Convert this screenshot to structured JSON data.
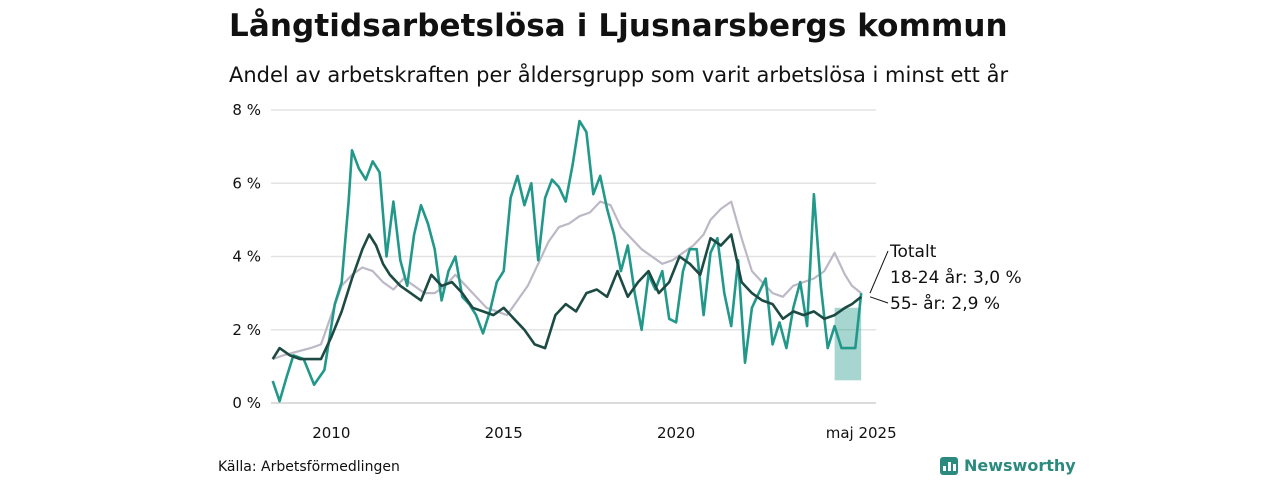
{
  "header": {
    "title": "Långtidsarbetslösa i Ljusnarsbergs kommun",
    "subtitle": "Andel av arbetskraften per åldersgrupp som varit arbetslösa i minst ett år"
  },
  "footer": {
    "source": "Källa: Arbetsförmedlingen",
    "brand": "Newsworthy"
  },
  "chart_data": {
    "type": "line",
    "ylim": [
      0,
      8
    ],
    "yticks": [
      0,
      2,
      4,
      6,
      8
    ],
    "ytick_labels": [
      "0 %",
      "2 %",
      "4 %",
      "6 %",
      "8 %"
    ],
    "xlim": [
      2008.25,
      2025.8
    ],
    "xticks": [
      2010,
      2015,
      2020,
      2025.37
    ],
    "xtick_labels": [
      "2010",
      "2015",
      "2020",
      "maj 2025"
    ],
    "grid": true,
    "series": [
      {
        "name": "Totalt",
        "color": "#bdb8c6",
        "x": [
          2008.3,
          2008.6,
          2009.0,
          2009.4,
          2009.7,
          2010.0,
          2010.3,
          2010.6,
          2010.9,
          2011.2,
          2011.5,
          2011.8,
          2012.1,
          2012.4,
          2012.7,
          2013.0,
          2013.3,
          2013.6,
          2013.9,
          2014.2,
          2014.5,
          2014.8,
          2015.1,
          2015.4,
          2015.7,
          2016.0,
          2016.3,
          2016.6,
          2016.9,
          2017.2,
          2017.5,
          2017.8,
          2018.1,
          2018.4,
          2018.7,
          2019.0,
          2019.3,
          2019.6,
          2019.9,
          2020.2,
          2020.5,
          2020.8,
          2021.0,
          2021.3,
          2021.6,
          2021.9,
          2022.2,
          2022.5,
          2022.8,
          2023.1,
          2023.4,
          2023.7,
          2024.0,
          2024.3,
          2024.6,
          2024.9,
          2025.1,
          2025.37
        ],
        "values": [
          1.2,
          1.3,
          1.4,
          1.5,
          1.6,
          2.4,
          3.2,
          3.5,
          3.7,
          3.6,
          3.3,
          3.1,
          3.4,
          3.2,
          3.0,
          3.0,
          3.2,
          3.5,
          3.2,
          2.9,
          2.6,
          2.5,
          2.4,
          2.8,
          3.2,
          3.8,
          4.4,
          4.8,
          4.9,
          5.1,
          5.2,
          5.5,
          5.4,
          4.8,
          4.5,
          4.2,
          4.0,
          3.8,
          3.9,
          4.1,
          4.3,
          4.6,
          5.0,
          5.3,
          5.5,
          4.5,
          3.6,
          3.3,
          3.0,
          2.9,
          3.2,
          3.3,
          3.4,
          3.6,
          4.1,
          3.5,
          3.2,
          3.0
        ]
      },
      {
        "name": "18-24 år: 3,0 %",
        "color": "#22988b",
        "x": [
          2008.3,
          2008.5,
          2008.7,
          2008.9,
          2009.2,
          2009.5,
          2009.8,
          2010.1,
          2010.3,
          2010.5,
          2010.6,
          2010.8,
          2011.0,
          2011.2,
          2011.4,
          2011.6,
          2011.8,
          2012.0,
          2012.2,
          2012.4,
          2012.6,
          2012.8,
          2013.0,
          2013.2,
          2013.4,
          2013.6,
          2013.8,
          2014.0,
          2014.2,
          2014.4,
          2014.6,
          2014.8,
          2015.0,
          2015.2,
          2015.4,
          2015.6,
          2015.8,
          2016.0,
          2016.2,
          2016.4,
          2016.6,
          2016.8,
          2017.0,
          2017.2,
          2017.4,
          2017.6,
          2017.8,
          2018.0,
          2018.2,
          2018.4,
          2018.6,
          2018.8,
          2019.0,
          2019.2,
          2019.4,
          2019.6,
          2019.8,
          2020.0,
          2020.2,
          2020.4,
          2020.6,
          2020.8,
          2021.0,
          2021.2,
          2021.4,
          2021.6,
          2021.8,
          2022.0,
          2022.2,
          2022.4,
          2022.6,
          2022.8,
          2023.0,
          2023.2,
          2023.4,
          2023.6,
          2023.8,
          2024.0,
          2024.2,
          2024.4,
          2024.6,
          2024.8,
          2025.0,
          2025.2,
          2025.37
        ],
        "values": [
          0.6,
          0.05,
          0.7,
          1.3,
          1.2,
          0.5,
          0.9,
          2.7,
          3.3,
          5.5,
          6.9,
          6.4,
          6.1,
          6.6,
          6.3,
          4.0,
          5.5,
          3.9,
          3.2,
          4.6,
          5.4,
          4.9,
          4.2,
          2.8,
          3.6,
          4.0,
          2.9,
          2.7,
          2.4,
          1.9,
          2.5,
          3.3,
          3.6,
          5.6,
          6.2,
          5.4,
          6.0,
          3.9,
          5.6,
          6.1,
          5.9,
          5.5,
          6.5,
          7.7,
          7.4,
          5.7,
          6.2,
          5.3,
          4.6,
          3.6,
          4.3,
          3.0,
          2.0,
          3.5,
          3.1,
          3.6,
          2.3,
          2.2,
          3.6,
          4.2,
          4.2,
          2.4,
          4.1,
          4.5,
          3.0,
          2.1,
          3.9,
          1.1,
          2.6,
          3.0,
          3.4,
          1.6,
          2.2,
          1.5,
          2.6,
          3.3,
          2.1,
          5.7,
          3.2,
          1.5,
          2.1,
          1.5,
          1.5,
          1.5,
          3.0
        ]
      },
      {
        "name": "55- år: 2,9 %",
        "color": "#1d4a42",
        "x": [
          2008.3,
          2008.5,
          2008.8,
          2009.1,
          2009.4,
          2009.7,
          2010.0,
          2010.3,
          2010.6,
          2010.9,
          2011.1,
          2011.3,
          2011.5,
          2011.7,
          2012.0,
          2012.3,
          2012.6,
          2012.9,
          2013.2,
          2013.5,
          2013.8,
          2014.1,
          2014.4,
          2014.7,
          2015.0,
          2015.3,
          2015.6,
          2015.9,
          2016.2,
          2016.5,
          2016.8,
          2017.1,
          2017.4,
          2017.7,
          2018.0,
          2018.3,
          2018.6,
          2018.9,
          2019.2,
          2019.5,
          2019.8,
          2020.1,
          2020.4,
          2020.7,
          2021.0,
          2021.3,
          2021.6,
          2021.9,
          2022.2,
          2022.5,
          2022.8,
          2023.1,
          2023.4,
          2023.7,
          2024.0,
          2024.3,
          2024.6,
          2024.9,
          2025.1,
          2025.37
        ],
        "values": [
          1.2,
          1.5,
          1.3,
          1.2,
          1.2,
          1.2,
          1.8,
          2.5,
          3.4,
          4.2,
          4.6,
          4.3,
          3.8,
          3.5,
          3.2,
          3.0,
          2.8,
          3.5,
          3.2,
          3.3,
          3.0,
          2.6,
          2.5,
          2.4,
          2.6,
          2.3,
          2.0,
          1.6,
          1.5,
          2.4,
          2.7,
          2.5,
          3.0,
          3.1,
          2.9,
          3.6,
          2.9,
          3.3,
          3.6,
          3.0,
          3.3,
          4.0,
          3.8,
          3.5,
          4.5,
          4.3,
          4.6,
          3.3,
          3.0,
          2.8,
          2.7,
          2.3,
          2.5,
          2.4,
          2.5,
          2.3,
          2.4,
          2.6,
          2.7,
          2.9
        ]
      }
    ],
    "band": {
      "color": "#22988b",
      "x": [
        2024.6,
        2025.37
      ],
      "lower": 0.62,
      "upper": 2.6
    },
    "labels": [
      "Totalt",
      "18-24 år: 3,0 %",
      "55- år: 2,9 %"
    ]
  }
}
